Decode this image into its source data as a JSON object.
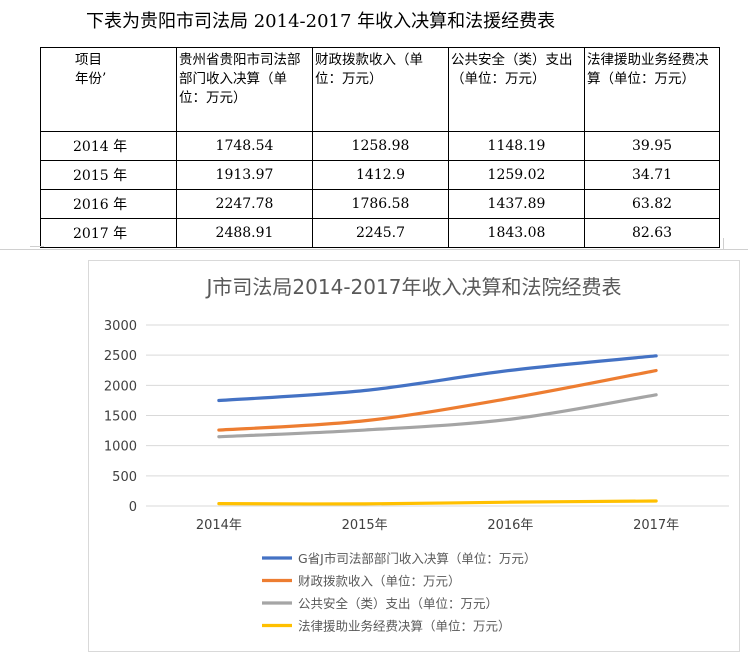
{
  "doc_title": "下表为贵阳市司法局 2014-2017 年收入决算和法援经费表",
  "table": {
    "corner_line1": "项目",
    "corner_line2": "年份’",
    "headers": [
      "贵州省贵阳市司法部部门收入决算（单位：万元）",
      "财政拨款收入（单位：万元）",
      "公共安全（类）支出（单位：万元）",
      "法律援助业务经费决算（单位：万元）"
    ],
    "rows": [
      {
        "year": "2014 年",
        "cells": [
          "1748.54",
          "1258.98",
          "1148.19",
          "39.95"
        ]
      },
      {
        "year": "2015 年",
        "cells": [
          "1913.97",
          "1412.9",
          "1259.02",
          "34.71"
        ]
      },
      {
        "year": "2016 年",
        "cells": [
          "2247.78",
          "1786.58",
          "1437.89",
          "63.82"
        ]
      },
      {
        "year": "2017 年",
        "cells": [
          "2488.91",
          "2245.7",
          "1843.08",
          "82.63"
        ]
      }
    ]
  },
  "chart_data": {
    "type": "line",
    "title": "J市司法局2014-2017年收入决算和法院经费表",
    "categories": [
      "2014年",
      "2015年",
      "2016年",
      "2017年"
    ],
    "ylim": [
      0,
      3000
    ],
    "yticks": [
      "0",
      "500",
      "1000",
      "1500",
      "2000",
      "2500",
      "3000"
    ],
    "grid": true,
    "legend_position": "bottom",
    "series": [
      {
        "name": "G省J市司法部部门收入决算（单位：万元）",
        "color": "#4472C4",
        "values": [
          1748.54,
          1913.97,
          2247.78,
          2488.91
        ]
      },
      {
        "name": "财政拨款收入（单位：万元）",
        "color": "#ED7D31",
        "values": [
          1258.98,
          1412.9,
          1786.58,
          2245.7
        ]
      },
      {
        "name": "公共安全（类）支出（单位：万元）",
        "color": "#A5A5A5",
        "values": [
          1148.19,
          1259.02,
          1437.89,
          1843.08
        ]
      },
      {
        "name": "法律援助业务经费决算（单位：万元）",
        "color": "#FFC000",
        "values": [
          39.95,
          34.71,
          63.82,
          82.63
        ]
      }
    ]
  }
}
